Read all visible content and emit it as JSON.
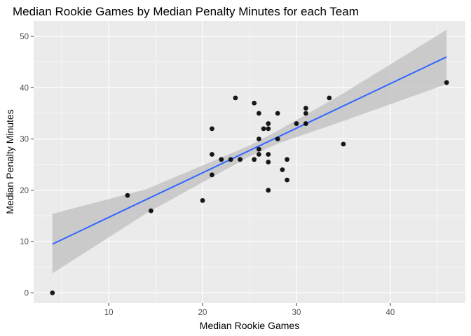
{
  "chart_data": {
    "type": "scatter",
    "title": "Median Rookie Games by Median Penalty Minutes for each Team",
    "xlabel": "Median Rookie Games",
    "ylabel": "Median Penalty Minutes",
    "xlim": [
      2,
      48
    ],
    "ylim": [
      -2,
      53
    ],
    "x_ticks": [
      10,
      20,
      30,
      40
    ],
    "y_ticks": [
      0,
      10,
      20,
      30,
      40,
      50
    ],
    "grid": true,
    "points": [
      {
        "x": 4,
        "y": 0
      },
      {
        "x": 12,
        "y": 19
      },
      {
        "x": 14.5,
        "y": 16
      },
      {
        "x": 20,
        "y": 18
      },
      {
        "x": 21,
        "y": 32
      },
      {
        "x": 21,
        "y": 27
      },
      {
        "x": 21,
        "y": 23
      },
      {
        "x": 22,
        "y": 26
      },
      {
        "x": 23,
        "y": 26
      },
      {
        "x": 23.5,
        "y": 38
      },
      {
        "x": 24,
        "y": 26
      },
      {
        "x": 25.5,
        "y": 37
      },
      {
        "x": 25.5,
        "y": 26
      },
      {
        "x": 26,
        "y": 35
      },
      {
        "x": 26,
        "y": 30
      },
      {
        "x": 26,
        "y": 28
      },
      {
        "x": 26,
        "y": 27
      },
      {
        "x": 26.5,
        "y": 32
      },
      {
        "x": 27,
        "y": 33
      },
      {
        "x": 27,
        "y": 32
      },
      {
        "x": 27,
        "y": 27
      },
      {
        "x": 27,
        "y": 25.5
      },
      {
        "x": 27,
        "y": 20
      },
      {
        "x": 28,
        "y": 35
      },
      {
        "x": 28,
        "y": 30
      },
      {
        "x": 28.5,
        "y": 24
      },
      {
        "x": 29,
        "y": 26
      },
      {
        "x": 29,
        "y": 22
      },
      {
        "x": 30,
        "y": 33
      },
      {
        "x": 31,
        "y": 36
      },
      {
        "x": 31,
        "y": 35
      },
      {
        "x": 31,
        "y": 33
      },
      {
        "x": 33.5,
        "y": 38
      },
      {
        "x": 35,
        "y": 29
      },
      {
        "x": 46,
        "y": 41
      }
    ],
    "trend_line": {
      "method": "linear",
      "x": [
        4,
        46
      ],
      "y": [
        9.5,
        46
      ]
    },
    "confidence_band": {
      "x": [
        4,
        14,
        25,
        28,
        35,
        46
      ],
      "lower": [
        3.8,
        15.5,
        26.6,
        29.1,
        33.5,
        40.7
      ],
      "upper": [
        15.4,
        20.2,
        28.7,
        31.6,
        38.9,
        51.3
      ]
    },
    "colors": {
      "panel_background": "#ebebeb",
      "grid": "#ffffff",
      "point": "#000000",
      "trend_line": "#3366ff",
      "confidence_band": "#bfbfbf"
    }
  }
}
